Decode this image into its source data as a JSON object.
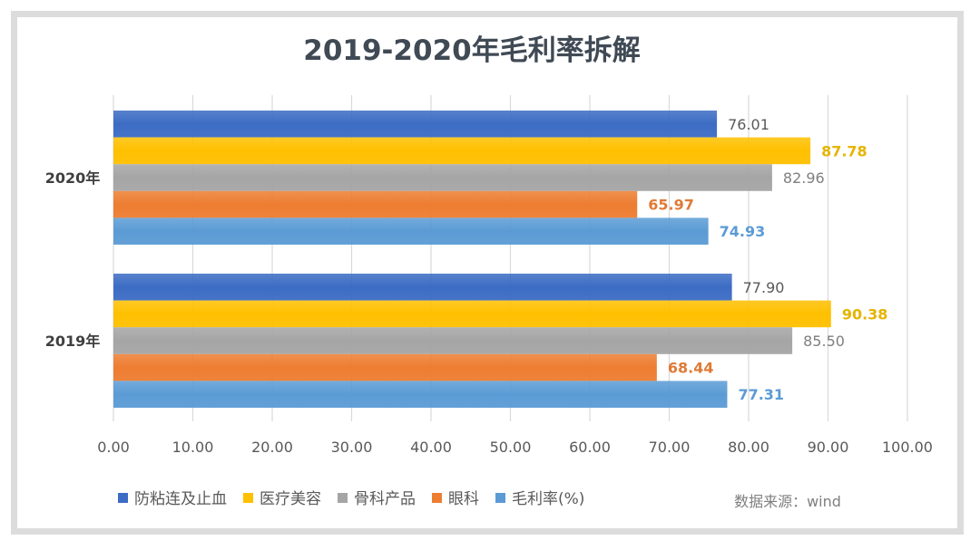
{
  "chart_data": {
    "type": "bar",
    "orientation": "horizontal",
    "title": "2019-2020年毛利率拆解",
    "categories": [
      "2020年",
      "2019年"
    ],
    "series": [
      {
        "name": "防粘连及止血",
        "values": [
          76.01,
          77.9
        ],
        "color": "#3c6cc4",
        "label_color": "#595959"
      },
      {
        "name": "医疗美容",
        "values": [
          87.78,
          90.38
        ],
        "color": "#ffc000",
        "label_color": "#e6b400"
      },
      {
        "name": "骨科产品",
        "values": [
          82.96,
          85.5
        ],
        "color": "#a5a5a5",
        "label_color": "#7f7f7f"
      },
      {
        "name": "眼科",
        "values": [
          65.97,
          68.44
        ],
        "color": "#ed7d31",
        "label_color": "#e07a35"
      },
      {
        "name": "毛利率(%)",
        "values": [
          74.93,
          77.31
        ],
        "color": "#5b9bd5",
        "label_color": "#5b9bd5"
      }
    ],
    "xlim": [
      0,
      100
    ],
    "xticks": [
      "0.00",
      "10.00",
      "20.00",
      "30.00",
      "40.00",
      "50.00",
      "60.00",
      "70.00",
      "80.00",
      "90.00",
      "100.00"
    ],
    "grid": true,
    "legend_position": "bottom",
    "source_note": "数据来源：wind"
  }
}
